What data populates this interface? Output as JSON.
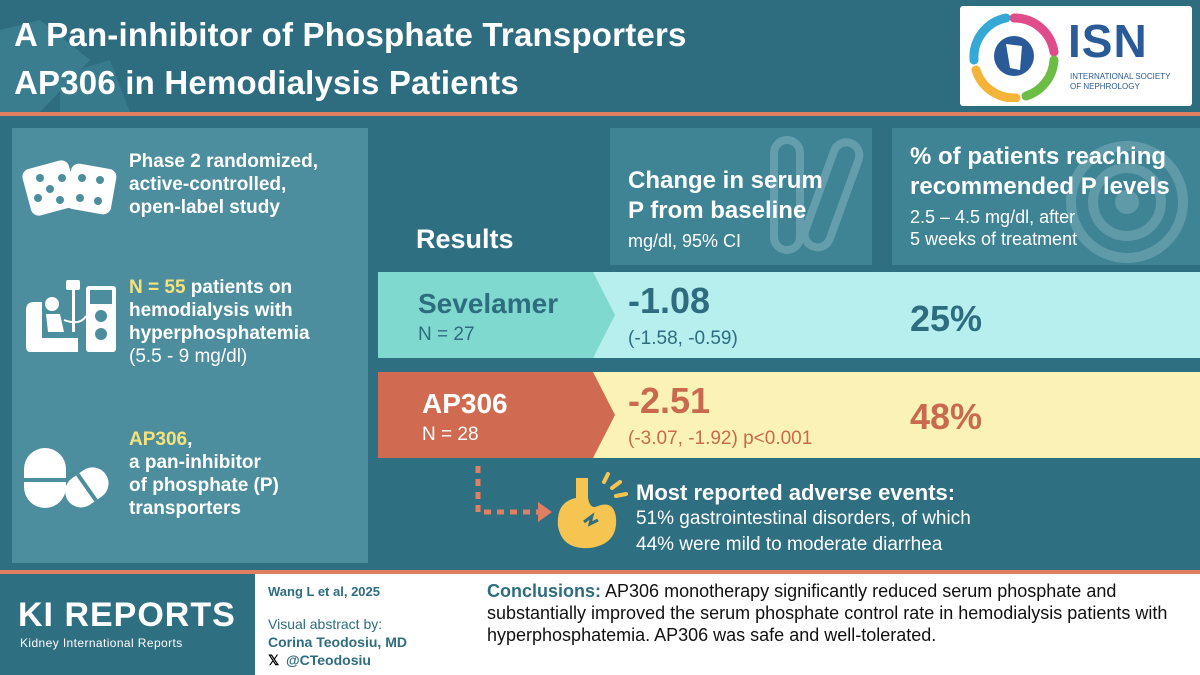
{
  "header": {
    "title_line1": "A Pan-inhibitor of Phosphate Transporters",
    "title_line2": "AP306 in Hemodialysis Patients",
    "logo_text": "ISN",
    "logo_sub_line1": "INTERNATIONAL SOCIETY",
    "logo_sub_line2": "OF NEPHROLOGY"
  },
  "study": {
    "design_line1": "Phase 2 randomized,",
    "design_line2": "active-controlled,",
    "design_line3": "open-label study",
    "n_highlight": "N = 55",
    "n_line1_rest": " patients on",
    "n_line2": "hemodialysis with",
    "n_line3": "hyperphosphatemia",
    "n_line4": "(5.5 - 9 mg/dl)",
    "drug_highlight": "AP306",
    "drug_line1_rest": ",",
    "drug_line2": "a pan-inhibitor",
    "drug_line3": "of phosphate (P)",
    "drug_line4": "transporters"
  },
  "results": {
    "label": "Results",
    "col1_title_line1": "Change in serum",
    "col1_title_line2": "P from baseline",
    "col1_sub": "mg/dl, 95% CI",
    "col2_title_line1": "% of patients reaching",
    "col2_title_line2": "recommended P levels",
    "col2_sub_line1": "2.5 – 4.5 mg/dl, after",
    "col2_sub_line2": "5 weeks of treatment",
    "rows": [
      {
        "drug": "Sevelamer",
        "n": "N = 27",
        "change": "-1.08",
        "ci": "(-1.58, -0.59)",
        "pct": "25%"
      },
      {
        "drug": "AP306",
        "n": "N = 28",
        "change": "-2.51",
        "ci": "(-3.07, -1.92) p<0.001",
        "pct": "48%"
      }
    ]
  },
  "adverse": {
    "title": "Most reported adverse events:",
    "line1": "51% gastrointestinal disorders, of which",
    "line2": "44% were mild to moderate diarrhea"
  },
  "footer": {
    "journal_title": "KI REPORTS",
    "journal_sub": "Kidney International Reports",
    "citation": "Wang L et al, 2025",
    "abstract_by": "Visual abstract by:",
    "author": "Corina Teodosiu, MD",
    "handle": "@CTeodosiu",
    "conclusions_label": "Conclusions:",
    "conclusions_text": " AP306 monotherapy significantly reduced serum phosphate and substantially improved the serum phosphate control rate in hemodialysis patients with hyperphosphatemia. AP306 was safe and well-tolerated."
  },
  "colors": {
    "background": "#2f6f82",
    "accent_orange": "#e07f62",
    "sevelamer_label": "#7fd9ce",
    "sevelamer_row": "#b7eeee",
    "ap306_label": "#d06b52",
    "ap306_row": "#fbf3b5",
    "highlight_yellow": "#f7e27a"
  },
  "icons": [
    "dice-icon",
    "hemodialysis-patient-icon",
    "pill-icon",
    "test-tube-icon",
    "target-icon",
    "stomach-icon",
    "isn-logo-icon",
    "x-logo-icon"
  ]
}
